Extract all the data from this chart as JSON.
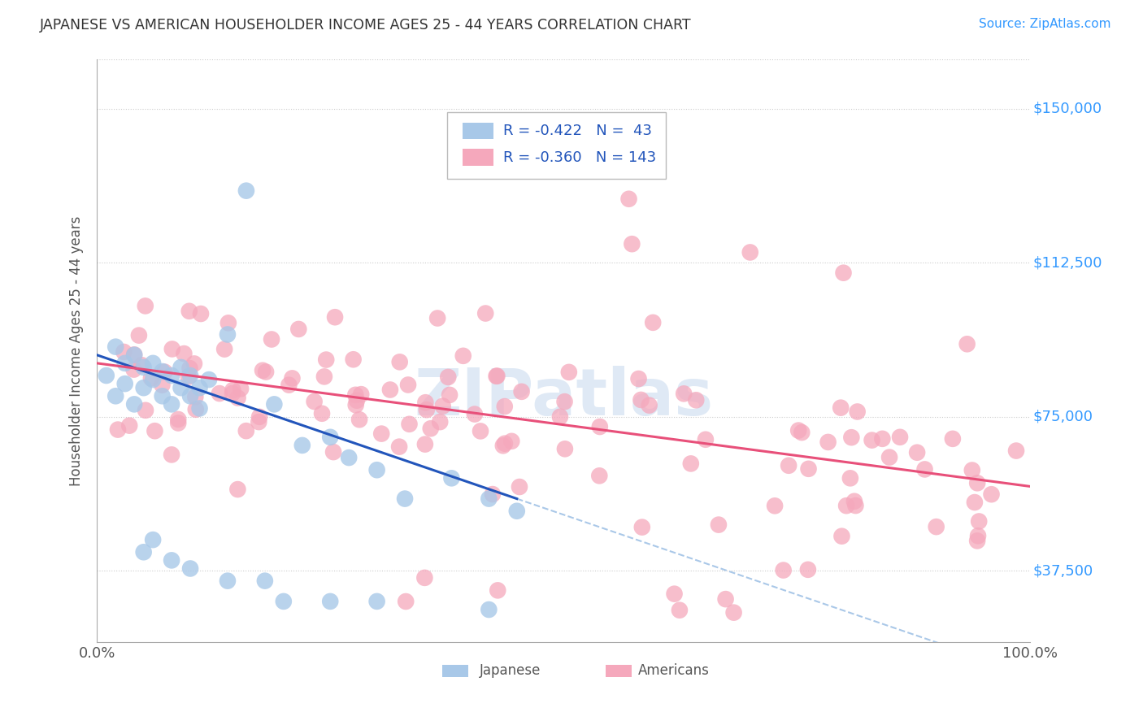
{
  "title": "JAPANESE VS AMERICAN HOUSEHOLDER INCOME AGES 25 - 44 YEARS CORRELATION CHART",
  "source": "Source: ZipAtlas.com",
  "ylabel": "Householder Income Ages 25 - 44 years",
  "xlim": [
    0.0,
    1.0
  ],
  "ylim": [
    20000,
    162000
  ],
  "yticks": [
    37500,
    75000,
    112500,
    150000
  ],
  "ytick_labels": [
    "$37,500",
    "$75,000",
    "$112,500",
    "$150,000"
  ],
  "xtick_labels": [
    "0.0%",
    "100.0%"
  ],
  "legend_r_japanese": "-0.422",
  "legend_n_japanese": "43",
  "legend_r_americans": "-0.360",
  "legend_n_americans": "143",
  "japanese_color": "#a8c8e8",
  "american_color": "#f5a8bc",
  "japanese_line_color": "#2255bb",
  "american_line_color": "#e8507a",
  "dashed_line_color": "#aac8e8",
  "watermark": "ZIPatlas",
  "background_color": "#ffffff",
  "grid_color": "#cccccc",
  "title_color": "#333333",
  "source_color": "#3399ff",
  "ytick_color": "#3399ff",
  "legend_text_color": "#2255bb"
}
